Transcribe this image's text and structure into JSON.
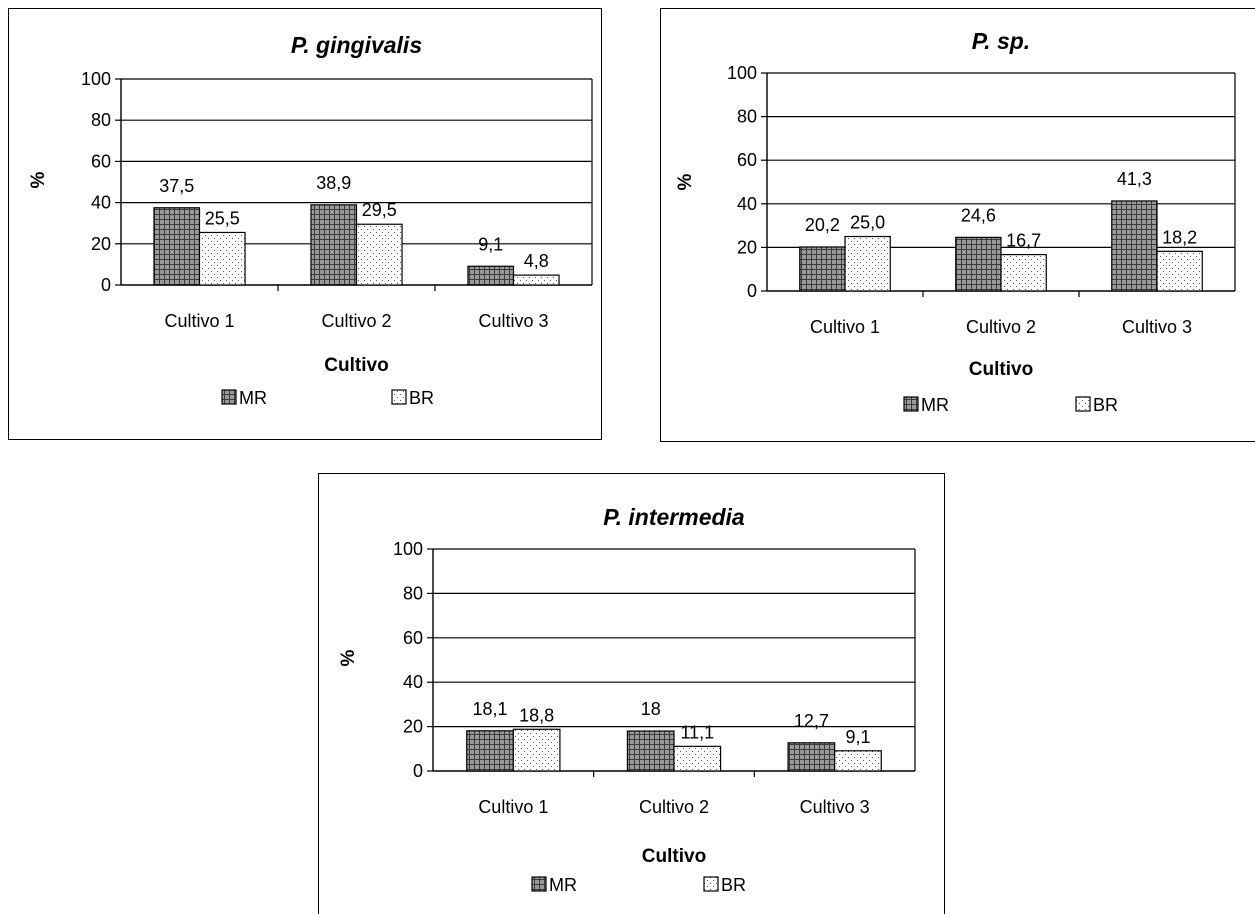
{
  "chart_data": [
    {
      "type": "bar",
      "title": "P. gingivalis",
      "xlabel": "Cultivo",
      "ylabel": "%",
      "ylim": [
        0,
        100
      ],
      "yticks": [
        "0",
        "20",
        "40",
        "60",
        "80",
        "100"
      ],
      "grid": true,
      "legend_position": "bottom",
      "categories": [
        "Cultivo 1",
        "Cultivo 2",
        "Cultivo 3"
      ],
      "series": [
        {
          "name": "MR",
          "values": [
            37.5,
            38.9,
            9.1
          ],
          "labels": [
            "37,5",
            "38,9",
            "9,1"
          ]
        },
        {
          "name": "BR",
          "values": [
            25.5,
            29.5,
            4.8
          ],
          "labels": [
            "25,5",
            "29,5",
            "4,8"
          ]
        }
      ]
    },
    {
      "type": "bar",
      "title": "P. sp.",
      "xlabel": "Cultivo",
      "ylabel": "%",
      "ylim": [
        0,
        100
      ],
      "yticks": [
        "0",
        "20",
        "40",
        "60",
        "80",
        "100"
      ],
      "grid": true,
      "legend_position": "bottom",
      "categories": [
        "Cultivo 1",
        "Cultivo 2",
        "Cultivo 3"
      ],
      "series": [
        {
          "name": "MR",
          "values": [
            20.2,
            24.6,
            41.3
          ],
          "labels": [
            "20,2",
            "24,6",
            "41,3"
          ]
        },
        {
          "name": "BR",
          "values": [
            25.0,
            16.7,
            18.2
          ],
          "labels": [
            "25,0",
            "16,7",
            "18,2"
          ]
        }
      ]
    },
    {
      "type": "bar",
      "title": "P. intermedia",
      "xlabel": "Cultivo",
      "ylabel": "%",
      "ylim": [
        0,
        100
      ],
      "yticks": [
        "0",
        "20",
        "40",
        "60",
        "80",
        "100"
      ],
      "grid": true,
      "legend_position": "bottom",
      "categories": [
        "Cultivo 1",
        "Cultivo 2",
        "Cultivo 3"
      ],
      "series": [
        {
          "name": "MR",
          "values": [
            18.1,
            18,
            12.7
          ],
          "labels": [
            "18,1",
            "18",
            "12,7"
          ]
        },
        {
          "name": "BR",
          "values": [
            18.8,
            11.1,
            9.1
          ],
          "labels": [
            "18,8",
            "11,1",
            "9,1"
          ]
        }
      ]
    }
  ]
}
